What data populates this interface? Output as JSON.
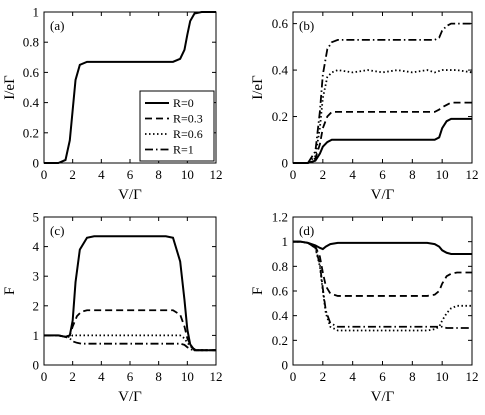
{
  "figure": {
    "legend": {
      "entries": [
        {
          "label": "R=0",
          "dash": "solid"
        },
        {
          "label": "R=0.3",
          "dash": "dashed"
        },
        {
          "label": "R=0.6",
          "dash": "dotted"
        },
        {
          "label": "R=1",
          "dash": "dashdot"
        }
      ]
    }
  },
  "chart_data": [
    {
      "type": "line",
      "panel_label": "(a)",
      "xlabel": "V/Γ",
      "ylabel": "I/eΓ",
      "xlim": [
        0,
        12
      ],
      "ylim": [
        0,
        1
      ],
      "xticks": [
        0,
        2,
        4,
        6,
        8,
        10,
        12
      ],
      "yticks": [
        0,
        0.2,
        0.4,
        0.6,
        0.8,
        1
      ],
      "ytick_labels": [
        "0",
        "0.2",
        "0.4",
        "0.6",
        "0.8",
        "1"
      ],
      "series": [
        {
          "dash": "solid",
          "x": [
            0,
            1,
            1.5,
            1.8,
            2.0,
            2.2,
            2.5,
            3.0,
            4,
            6,
            8,
            9,
            9.5,
            9.8,
            10.0,
            10.2,
            10.5,
            11,
            12
          ],
          "y": [
            0,
            0.0,
            0.02,
            0.15,
            0.35,
            0.55,
            0.65,
            0.67,
            0.67,
            0.67,
            0.67,
            0.67,
            0.69,
            0.75,
            0.85,
            0.94,
            0.99,
            1.0,
            1.0
          ]
        }
      ]
    },
    {
      "type": "line",
      "panel_label": "(b)",
      "xlabel": "V/Γ",
      "ylabel": "I/eΓ",
      "xlim": [
        0,
        12
      ],
      "ylim": [
        0,
        0.65
      ],
      "xticks": [
        0,
        2,
        4,
        6,
        8,
        10,
        12
      ],
      "yticks": [
        0,
        0.2,
        0.4,
        0.6
      ],
      "ytick_labels": [
        "0",
        "0.2",
        "0.4",
        "0.6"
      ],
      "series": [
        {
          "dash": "solid",
          "x": [
            0,
            1,
            1.5,
            1.8,
            2.0,
            2.3,
            2.6,
            3,
            5,
            8,
            9.5,
            9.8,
            10.0,
            10.3,
            10.6,
            11,
            12
          ],
          "y": [
            0,
            0,
            0.01,
            0.04,
            0.07,
            0.09,
            0.1,
            0.1,
            0.1,
            0.1,
            0.1,
            0.11,
            0.15,
            0.18,
            0.19,
            0.19,
            0.19
          ]
        },
        {
          "dash": "dashed",
          "x": [
            0,
            1,
            1.5,
            1.8,
            2.0,
            2.3,
            2.6,
            3,
            5,
            8,
            9.5,
            9.8,
            10.0,
            10.3,
            10.6,
            11,
            12
          ],
          "y": [
            0,
            0,
            0.02,
            0.08,
            0.15,
            0.2,
            0.22,
            0.22,
            0.22,
            0.22,
            0.22,
            0.23,
            0.24,
            0.25,
            0.26,
            0.26,
            0.26
          ]
        },
        {
          "dash": "dotted",
          "x": [
            0,
            1,
            1.5,
            1.8,
            2.0,
            2.3,
            2.6,
            3,
            4,
            5,
            6,
            7,
            8,
            9,
            9.5,
            10,
            10.5,
            11,
            12
          ],
          "y": [
            0,
            0,
            0.03,
            0.15,
            0.28,
            0.37,
            0.39,
            0.4,
            0.39,
            0.4,
            0.39,
            0.4,
            0.39,
            0.4,
            0.39,
            0.4,
            0.4,
            0.4,
            0.39
          ]
        },
        {
          "dash": "dashdot",
          "x": [
            0,
            1,
            1.5,
            1.8,
            2.0,
            2.3,
            2.6,
            3,
            5,
            8,
            9.5,
            9.8,
            10.0,
            10.3,
            10.6,
            11,
            12
          ],
          "y": [
            0,
            0,
            0.05,
            0.22,
            0.38,
            0.49,
            0.52,
            0.53,
            0.53,
            0.53,
            0.53,
            0.54,
            0.57,
            0.59,
            0.6,
            0.6,
            0.6
          ]
        }
      ]
    },
    {
      "type": "line",
      "panel_label": "(c)",
      "xlabel": "V/Γ",
      "ylabel": "F",
      "xlim": [
        0,
        12
      ],
      "ylim": [
        0,
        5
      ],
      "xticks": [
        0,
        2,
        4,
        6,
        8,
        10,
        12
      ],
      "yticks": [
        0,
        1,
        2,
        3,
        4,
        5
      ],
      "ytick_labels": [
        "0",
        "1",
        "2",
        "3",
        "4",
        "5"
      ],
      "series": [
        {
          "dash": "solid",
          "x": [
            0,
            1,
            1.5,
            1.8,
            2.0,
            2.2,
            2.5,
            3.0,
            3.5,
            6,
            8.5,
            9.0,
            9.5,
            9.8,
            10.0,
            10.2,
            10.5,
            11,
            12
          ],
          "y": [
            1.0,
            1.0,
            0.95,
            1.0,
            1.5,
            2.8,
            3.9,
            4.3,
            4.35,
            4.35,
            4.35,
            4.3,
            3.5,
            2.2,
            1.2,
            0.7,
            0.5,
            0.5,
            0.5
          ]
        },
        {
          "dash": "dashed",
          "x": [
            0,
            1,
            1.5,
            1.8,
            2.0,
            2.3,
            2.6,
            3.0,
            5,
            8.5,
            9.0,
            9.5,
            9.8,
            10.0,
            10.3,
            10.6,
            11,
            12
          ],
          "y": [
            1.0,
            1.0,
            0.95,
            1.0,
            1.3,
            1.65,
            1.8,
            1.85,
            1.85,
            1.85,
            1.85,
            1.7,
            1.3,
            0.9,
            0.6,
            0.5,
            0.5,
            0.5
          ]
        },
        {
          "dash": "dotted",
          "x": [
            0,
            1,
            1.5,
            1.8,
            2.0,
            2.5,
            3,
            5,
            8,
            9.0,
            9.5,
            9.8,
            10.0,
            10.3,
            10.6,
            11,
            12
          ],
          "y": [
            1.0,
            1.0,
            0.95,
            0.95,
            1.0,
            1.0,
            1.0,
            1.0,
            1.0,
            1.0,
            1.0,
            0.9,
            0.75,
            0.6,
            0.5,
            0.5,
            0.5
          ]
        },
        {
          "dash": "dashdot",
          "x": [
            0,
            1,
            1.5,
            1.8,
            2.0,
            2.3,
            2.6,
            3,
            5,
            8,
            9.0,
            9.5,
            9.8,
            10.0,
            10.3,
            10.6,
            11,
            12
          ],
          "y": [
            1.0,
            1.0,
            0.95,
            0.9,
            0.8,
            0.75,
            0.72,
            0.72,
            0.72,
            0.72,
            0.72,
            0.72,
            0.68,
            0.6,
            0.52,
            0.5,
            0.5,
            0.5
          ]
        }
      ]
    },
    {
      "type": "line",
      "panel_label": "(d)",
      "xlabel": "V/Γ",
      "ylabel": "F",
      "xlim": [
        0,
        12
      ],
      "ylim": [
        0,
        1.2
      ],
      "xticks": [
        0,
        2,
        4,
        6,
        8,
        10,
        12
      ],
      "yticks": [
        0,
        0.2,
        0.4,
        0.6,
        0.8,
        1,
        1.2
      ],
      "ytick_labels": [
        "0",
        "0.2",
        "0.4",
        "0.6",
        "0.8",
        "1",
        "1.2"
      ],
      "series": [
        {
          "dash": "solid",
          "x": [
            0,
            0.5,
            1.0,
            1.5,
            1.8,
            2.0,
            2.2,
            2.5,
            3,
            5,
            8,
            9.0,
            9.5,
            9.8,
            10.0,
            10.3,
            10.6,
            11,
            12
          ],
          "y": [
            1.0,
            1.0,
            0.99,
            0.97,
            0.95,
            0.94,
            0.96,
            0.98,
            0.99,
            0.99,
            0.99,
            0.99,
            0.98,
            0.96,
            0.93,
            0.91,
            0.9,
            0.9,
            0.9
          ]
        },
        {
          "dash": "dashed",
          "x": [
            0,
            0.5,
            1.0,
            1.5,
            1.8,
            2.0,
            2.2,
            2.5,
            3,
            5,
            8,
            9.0,
            9.5,
            9.8,
            10.0,
            10.3,
            10.6,
            11,
            12
          ],
          "y": [
            1.0,
            1.0,
            0.99,
            0.96,
            0.88,
            0.75,
            0.64,
            0.58,
            0.56,
            0.56,
            0.56,
            0.56,
            0.57,
            0.6,
            0.66,
            0.72,
            0.74,
            0.75,
            0.75
          ]
        },
        {
          "dash": "dotted",
          "x": [
            0,
            0.5,
            1.0,
            1.5,
            1.8,
            2.0,
            2.2,
            2.5,
            3,
            5,
            8,
            9.0,
            9.5,
            9.8,
            10.0,
            10.3,
            10.6,
            11,
            12
          ],
          "y": [
            1.0,
            1.0,
            0.99,
            0.95,
            0.8,
            0.6,
            0.42,
            0.31,
            0.28,
            0.28,
            0.28,
            0.28,
            0.29,
            0.31,
            0.36,
            0.42,
            0.46,
            0.48,
            0.48
          ]
        },
        {
          "dash": "dashdot",
          "x": [
            0,
            0.5,
            1.0,
            1.5,
            1.8,
            2.0,
            2.2,
            2.5,
            3,
            5,
            8,
            9.0,
            9.5,
            9.8,
            10.0,
            10.3,
            10.6,
            11,
            12
          ],
          "y": [
            1.0,
            1.0,
            0.99,
            0.95,
            0.82,
            0.62,
            0.44,
            0.34,
            0.31,
            0.31,
            0.31,
            0.31,
            0.31,
            0.31,
            0.31,
            0.3,
            0.3,
            0.3,
            0.3
          ]
        }
      ]
    }
  ]
}
